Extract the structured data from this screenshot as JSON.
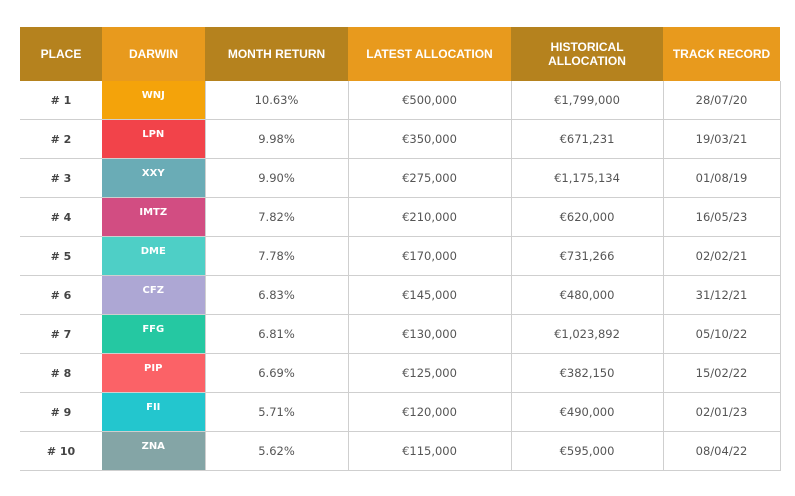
{
  "headers": {
    "place": "PLACE",
    "darwin": "DARWIN",
    "month_return": "MONTH RETURN",
    "latest_allocation": "LATEST ALLOCATION",
    "historical_allocation": "HISTORICAL ALLOCATION",
    "track_record": "TRACK RECORD"
  },
  "colors": {
    "header_dark": "#b5821e",
    "header_light": "#e89a1d"
  },
  "rows": [
    {
      "place": "# 1",
      "darwin": "WNJ",
      "color": "#f4a30a",
      "month_return": "10.63%",
      "latest_allocation": "€500,000",
      "historical_allocation": "€1,799,000",
      "track_record": "28/07/20"
    },
    {
      "place": "# 2",
      "darwin": "LPN",
      "color": "#f2434a",
      "month_return": "9.98%",
      "latest_allocation": "€350,000",
      "historical_allocation": "€671,231",
      "track_record": "19/03/21"
    },
    {
      "place": "# 3",
      "darwin": "XXY",
      "color": "#6aacb6",
      "month_return": "9.90%",
      "latest_allocation": "€275,000",
      "historical_allocation": "€1,175,134",
      "track_record": "01/08/19"
    },
    {
      "place": "# 4",
      "darwin": "IMTZ",
      "color": "#d24d82",
      "month_return": "7.82%",
      "latest_allocation": "€210,000",
      "historical_allocation": "€620,000",
      "track_record": "16/05/23"
    },
    {
      "place": "# 5",
      "darwin": "DME",
      "color": "#4ecfc6",
      "month_return": "7.78%",
      "latest_allocation": "€170,000",
      "historical_allocation": "€731,266",
      "track_record": "02/02/21"
    },
    {
      "place": "# 6",
      "darwin": "CFZ",
      "color": "#ada7d4",
      "month_return": "6.83%",
      "latest_allocation": "€145,000",
      "historical_allocation": "€480,000",
      "track_record": "31/12/21"
    },
    {
      "place": "# 7",
      "darwin": "FFG",
      "color": "#25c8a2",
      "month_return": "6.81%",
      "latest_allocation": "€130,000",
      "historical_allocation": "€1,023,892",
      "track_record": "05/10/22"
    },
    {
      "place": "# 8",
      "darwin": "PIP",
      "color": "#fb6267",
      "month_return": "6.69%",
      "latest_allocation": "€125,000",
      "historical_allocation": "€382,150",
      "track_record": "15/02/22"
    },
    {
      "place": "# 9",
      "darwin": "FII",
      "color": "#23c6ce",
      "month_return": "5.71%",
      "latest_allocation": "€120,000",
      "historical_allocation": "€490,000",
      "track_record": "02/01/23"
    },
    {
      "place": "# 10",
      "darwin": "ZNA",
      "color": "#84a5a6",
      "month_return": "5.62%",
      "latest_allocation": "€115,000",
      "historical_allocation": "€595,000",
      "track_record": "08/04/22"
    }
  ]
}
